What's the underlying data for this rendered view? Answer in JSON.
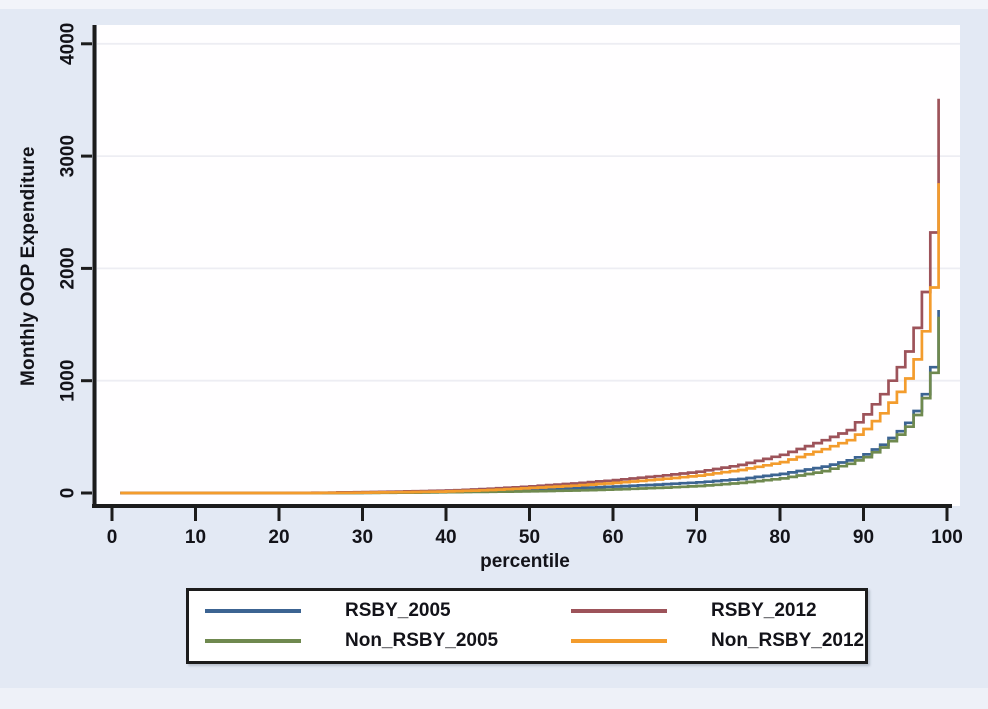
{
  "figure": {
    "background": "#e3e9f4",
    "top_strip": "#f2f4fa",
    "bottom_strip": "#eef1f8",
    "plot_bg": "#fffeff",
    "grid_color": "#ededf3",
    "axis_color": "#1c1c1c",
    "text_color": "#131319"
  },
  "chart_data": {
    "type": "line",
    "style": "step-quantile-curves",
    "title": "",
    "xlabel": "percentile",
    "ylabel": "Monthly OOP Expenditure",
    "xlim": [
      0,
      100
    ],
    "ylim": [
      0,
      4000
    ],
    "xticks": [
      0,
      10,
      20,
      30,
      40,
      50,
      60,
      70,
      80,
      90,
      100
    ],
    "yticks": [
      0,
      1000,
      2000,
      3000,
      4000
    ],
    "grid": "horizontal-only",
    "legend_position": "bottom",
    "legend_order": [
      "RSBY_2005",
      "RSBY_2012",
      "Non_RSBY_2005",
      "Non_RSBY_2012"
    ],
    "draw_order": [
      "RSBY_2005",
      "Non_RSBY_2005",
      "RSBY_2012",
      "Non_RSBY_2012"
    ],
    "series": [
      {
        "name": "RSBY_2005",
        "color": "#3c6492",
        "points": [
          [
            1,
            0
          ],
          [
            26,
            0
          ],
          [
            30,
            2
          ],
          [
            35,
            5
          ],
          [
            40,
            10
          ],
          [
            45,
            18
          ],
          [
            50,
            30
          ],
          [
            55,
            42
          ],
          [
            60,
            58
          ],
          [
            65,
            75
          ],
          [
            70,
            95
          ],
          [
            75,
            125
          ],
          [
            80,
            170
          ],
          [
            85,
            235
          ],
          [
            88,
            290
          ],
          [
            90,
            345
          ],
          [
            92,
            430
          ],
          [
            94,
            550
          ],
          [
            95,
            625
          ],
          [
            96,
            730
          ],
          [
            97,
            880
          ],
          [
            98,
            1120
          ],
          [
            99,
            1630
          ]
        ]
      },
      {
        "name": "RSBY_2012",
        "color": "#9d535a",
        "points": [
          [
            1,
            0
          ],
          [
            20,
            0
          ],
          [
            25,
            3
          ],
          [
            30,
            8
          ],
          [
            35,
            14
          ],
          [
            40,
            22
          ],
          [
            45,
            38
          ],
          [
            50,
            60
          ],
          [
            55,
            85
          ],
          [
            60,
            115
          ],
          [
            65,
            150
          ],
          [
            70,
            190
          ],
          [
            75,
            250
          ],
          [
            80,
            340
          ],
          [
            85,
            470
          ],
          [
            88,
            560
          ],
          [
            90,
            700
          ],
          [
            92,
            880
          ],
          [
            94,
            1120
          ],
          [
            95,
            1260
          ],
          [
            96,
            1470
          ],
          [
            97,
            1790
          ],
          [
            98,
            2320
          ],
          [
            99,
            3510
          ]
        ]
      },
      {
        "name": "Non_RSBY_2005",
        "color": "#6f894f",
        "points": [
          [
            1,
            0
          ],
          [
            28,
            0
          ],
          [
            33,
            2
          ],
          [
            36,
            4
          ],
          [
            40,
            7
          ],
          [
            45,
            11
          ],
          [
            50,
            15
          ],
          [
            55,
            22
          ],
          [
            60,
            32
          ],
          [
            65,
            45
          ],
          [
            70,
            62
          ],
          [
            75,
            90
          ],
          [
            80,
            130
          ],
          [
            85,
            195
          ],
          [
            88,
            260
          ],
          [
            90,
            320
          ],
          [
            92,
            405
          ],
          [
            94,
            520
          ],
          [
            95,
            590
          ],
          [
            96,
            695
          ],
          [
            97,
            845
          ],
          [
            98,
            1070
          ],
          [
            99,
            1570
          ]
        ]
      },
      {
        "name": "Non_RSBY_2012",
        "color": "#f39c2d",
        "points": [
          [
            1,
            0
          ],
          [
            24,
            0
          ],
          [
            28,
            2
          ],
          [
            32,
            5
          ],
          [
            35,
            8
          ],
          [
            40,
            14
          ],
          [
            45,
            27
          ],
          [
            50,
            45
          ],
          [
            55,
            65
          ],
          [
            60,
            90
          ],
          [
            65,
            120
          ],
          [
            70,
            155
          ],
          [
            75,
            205
          ],
          [
            80,
            275
          ],
          [
            85,
            390
          ],
          [
            88,
            470
          ],
          [
            90,
            570
          ],
          [
            92,
            710
          ],
          [
            94,
            900
          ],
          [
            95,
            1020
          ],
          [
            96,
            1190
          ],
          [
            97,
            1440
          ],
          [
            98,
            1830
          ],
          [
            99,
            2760
          ]
        ]
      }
    ]
  }
}
